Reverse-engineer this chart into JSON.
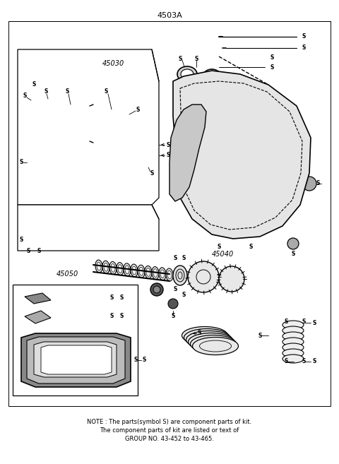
{
  "title": "4503A",
  "background_color": "#ffffff",
  "line_color": "#000000",
  "text_color": "#000000",
  "label_45030": "45030",
  "label_45040": "45040",
  "label_45050": "45050",
  "note_line1": "NOTE : The parts(symbol S) are component parts of kit.",
  "note_line2": "The component parts of kit are listed or text of",
  "note_line3": "GROUP NO. 43-452 to 43-465.",
  "fig_width": 4.8,
  "fig_height": 6.57,
  "dpi": 100
}
